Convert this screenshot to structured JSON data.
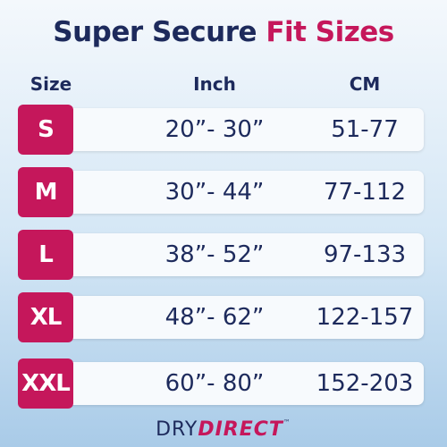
{
  "header": {
    "title": [
      "Super Secure",
      "Fit Sizes"
    ]
  },
  "table": {
    "columns": [
      "Size",
      "Inch",
      "CM"
    ],
    "rows": [
      [
        "S",
        "20”- 30”",
        "51-77"
      ],
      [
        "M",
        "30”- 44”",
        "77-112"
      ],
      [
        "L",
        "38”- 52”",
        "97-133"
      ],
      [
        "XL",
        "48”- 62”",
        "122-157"
      ],
      [
        "XXL",
        "60”- 80”",
        "152-203"
      ]
    ]
  },
  "footer": {
    "brand": [
      "DRY",
      "DIRECT",
      "™"
    ]
  }
}
